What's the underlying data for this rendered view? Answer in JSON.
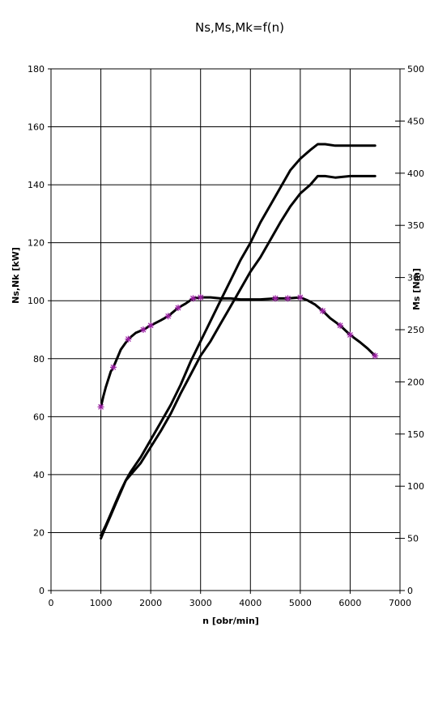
{
  "chart_data": {
    "type": "line",
    "title": "Ns,Ms,Mk=f(n)",
    "xlabel": "n [obr/min]",
    "ylabel": "Ns,Nk [kW]",
    "y2label": "Ms [Nm]",
    "xlim": [
      0,
      7000
    ],
    "ylim": [
      0,
      180
    ],
    "y2lim": [
      0,
      500
    ],
    "xticks": [
      0,
      1000,
      2000,
      3000,
      4000,
      5000,
      6000,
      7000
    ],
    "yticks": [
      0,
      20,
      40,
      60,
      80,
      100,
      120,
      140,
      160,
      180
    ],
    "y2ticks": [
      0,
      50,
      100,
      150,
      200,
      250,
      300,
      350,
      400,
      450,
      500
    ],
    "grid": true,
    "legend": "none",
    "colors": {
      "line": "#000000",
      "marker": "#9b1fa3",
      "grid": "#000000"
    },
    "series": [
      {
        "axis": "right",
        "marker": "asterisk",
        "points": [
          [
            1000,
            176
          ],
          [
            1050,
            186
          ],
          [
            1100,
            195
          ],
          [
            1200,
            210
          ],
          [
            1250,
            214
          ],
          [
            1400,
            231
          ],
          [
            1550,
            241
          ],
          [
            1700,
            247
          ],
          [
            1850,
            250
          ],
          [
            2000,
            254
          ],
          [
            2200,
            259
          ],
          [
            2350,
            263
          ],
          [
            2550,
            271
          ],
          [
            2700,
            275
          ],
          [
            2850,
            280
          ],
          [
            3000,
            281
          ],
          [
            3200,
            281
          ],
          [
            3400,
            280
          ],
          [
            3600,
            280
          ],
          [
            3800,
            279
          ],
          [
            4000,
            279
          ],
          [
            4200,
            279
          ],
          [
            4500,
            280
          ],
          [
            4750,
            280
          ],
          [
            5000,
            281
          ],
          [
            5150,
            278
          ],
          [
            5300,
            274
          ],
          [
            5450,
            268
          ],
          [
            5600,
            261
          ],
          [
            5800,
            254
          ],
          [
            6000,
            245
          ],
          [
            6200,
            238
          ],
          [
            6350,
            232
          ],
          [
            6500,
            225
          ]
        ],
        "marker_points": [
          [
            1000,
            176
          ],
          [
            1250,
            214
          ],
          [
            1550,
            241
          ],
          [
            1850,
            250
          ],
          [
            2000,
            254
          ],
          [
            2350,
            263
          ],
          [
            2550,
            271
          ],
          [
            2850,
            280
          ],
          [
            3000,
            281
          ],
          [
            4500,
            280
          ],
          [
            4750,
            280
          ],
          [
            5000,
            281
          ],
          [
            5450,
            268
          ],
          [
            5800,
            254
          ],
          [
            6000,
            245
          ],
          [
            6500,
            225
          ]
        ]
      },
      {
        "axis": "left",
        "points": [
          [
            1000,
            18
          ],
          [
            1100,
            22
          ],
          [
            1200,
            26
          ],
          [
            1300,
            30
          ],
          [
            1400,
            34
          ],
          [
            1500,
            38
          ],
          [
            1600,
            41
          ],
          [
            1800,
            46
          ],
          [
            2000,
            52
          ],
          [
            2200,
            58
          ],
          [
            2400,
            64
          ],
          [
            2600,
            71
          ],
          [
            2800,
            79
          ],
          [
            3000,
            86
          ],
          [
            3200,
            93
          ],
          [
            3400,
            100
          ],
          [
            3600,
            107
          ],
          [
            3800,
            114
          ],
          [
            4000,
            120
          ],
          [
            4200,
            127
          ],
          [
            4400,
            133
          ],
          [
            4600,
            139
          ],
          [
            4800,
            145
          ],
          [
            5000,
            149
          ],
          [
            5200,
            152
          ],
          [
            5350,
            154
          ],
          [
            5500,
            154
          ],
          [
            5700,
            153.5
          ],
          [
            6000,
            153.5
          ],
          [
            6500,
            153.5
          ]
        ]
      },
      {
        "axis": "left",
        "points": [
          [
            1000,
            19
          ],
          [
            1100,
            22.5
          ],
          [
            1200,
            26.5
          ],
          [
            1300,
            30.5
          ],
          [
            1400,
            34.5
          ],
          [
            1500,
            38
          ],
          [
            1600,
            40
          ],
          [
            1800,
            44
          ],
          [
            2000,
            49.5
          ],
          [
            2200,
            55
          ],
          [
            2400,
            61
          ],
          [
            2600,
            68
          ],
          [
            2800,
            74.5
          ],
          [
            3000,
            81
          ],
          [
            3200,
            86
          ],
          [
            3400,
            92
          ],
          [
            3600,
            98
          ],
          [
            3800,
            104
          ],
          [
            4000,
            110
          ],
          [
            4200,
            115
          ],
          [
            4400,
            121
          ],
          [
            4600,
            127
          ],
          [
            4800,
            132.5
          ],
          [
            5000,
            137
          ],
          [
            5200,
            140
          ],
          [
            5350,
            143
          ],
          [
            5500,
            143
          ],
          [
            5700,
            142.5
          ],
          [
            6000,
            143
          ],
          [
            6500,
            143
          ]
        ]
      }
    ]
  }
}
